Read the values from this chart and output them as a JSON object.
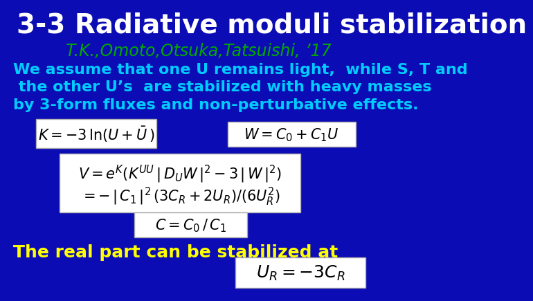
{
  "background_color": "#0c0cb5",
  "title": "3-3 Radiative moduli stabilization",
  "title_color": "#FFFFFF",
  "title_fontsize": 28,
  "subtitle": "T.K.,Omoto,Otsuka,Tatsuishi, ’17",
  "subtitle_color": "#00AA00",
  "subtitle_fontsize": 17,
  "body_text_color": "#00CCFF",
  "body_fontsize": 16,
  "body_lines": [
    "We assume that one U remains light,  while S, T and",
    " the other U’s  are stabilized with heavy masses",
    "by 3-form fluxes and non-perturbative effects."
  ],
  "yellow_text": "The real part can be stabilized at",
  "yellow_color": "#FFFF00",
  "yellow_fontsize": 18,
  "eq1": "$K = -3\\,\\ln(U + \\bar{U}\\,)$",
  "eq2": "$W = C_0 + C_1 U$",
  "eq3": "$V = e^{K}(K^{UU}\\,|\\,D_U W\\,|^2 - 3\\,|\\,W\\,|^2)$",
  "eq4": "$= -\\,|\\,C_1\\,|^2\\,(3C_R + 2U_R)/(6U_R^2)$",
  "eq5": "$C = C_0\\,/\\,C_1$",
  "eq6": "$U_R = -3C_R$",
  "box_facecolor": "#FFFFFF",
  "box_edgecolor": "#AAAAAA",
  "eq_fontsize": 15
}
